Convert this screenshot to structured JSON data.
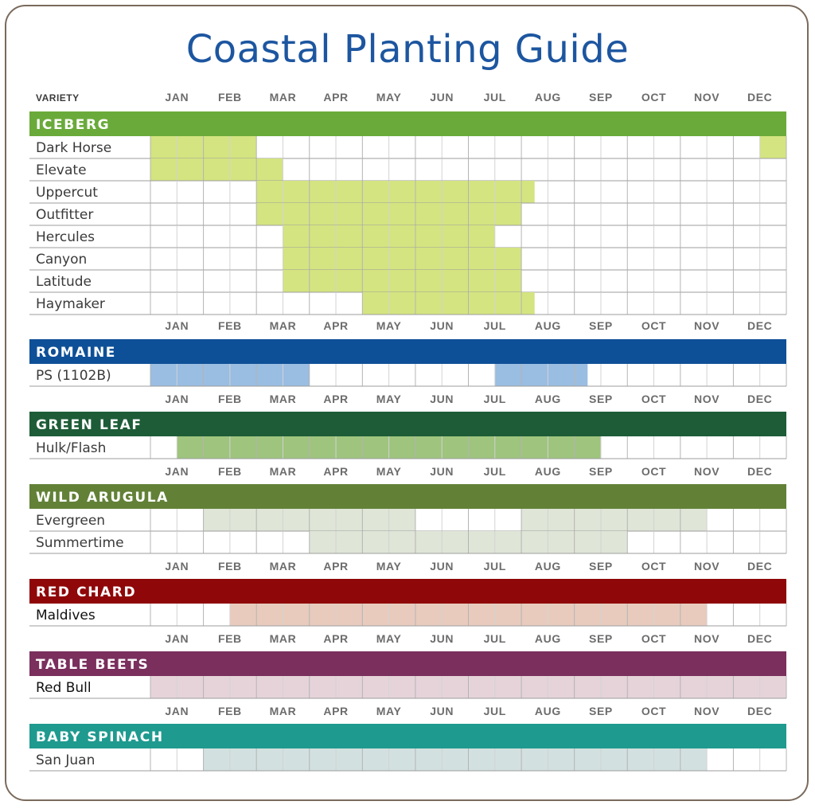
{
  "title": "Coastal Planting Guide",
  "variety_header": "VARIETY",
  "chart_data": {
    "type": "table",
    "months": [
      "JAN",
      "FEB",
      "MAR",
      "APR",
      "MAY",
      "JUN",
      "JUL",
      "AUG",
      "SEP",
      "OCT",
      "NOV",
      "DEC"
    ],
    "note": "each month is split into halves; start/end are half-month positions (0 = start of JAN, 24 = end of DEC)",
    "sections": [
      {
        "name": "ICEBERG",
        "color": "#6aaa3a",
        "fill": "#d4e480",
        "rows": [
          {
            "variety": "Dark Horse",
            "ranges": [
              [
                0,
                4
              ],
              [
                23,
                24
              ]
            ]
          },
          {
            "variety": "Elevate",
            "ranges": [
              [
                0,
                5
              ]
            ]
          },
          {
            "variety": "Uppercut",
            "ranges": [
              [
                4,
                14.5
              ]
            ]
          },
          {
            "variety": "Outfitter",
            "ranges": [
              [
                4,
                14
              ]
            ]
          },
          {
            "variety": "Hercules",
            "ranges": [
              [
                5,
                13
              ]
            ]
          },
          {
            "variety": "Canyon",
            "ranges": [
              [
                5,
                14
              ]
            ]
          },
          {
            "variety": "Latitude",
            "ranges": [
              [
                5,
                14
              ]
            ]
          },
          {
            "variety": "Haymaker",
            "ranges": [
              [
                8,
                14.5
              ]
            ]
          }
        ]
      },
      {
        "name": "ROMAINE",
        "color": "#0e5097",
        "fill": "#9abde2",
        "rows": [
          {
            "variety": "PS (1102B)",
            "ranges": [
              [
                0,
                6
              ],
              [
                13,
                16.5
              ]
            ]
          }
        ]
      },
      {
        "name": "GREEN LEAF",
        "color": "#1d5c37",
        "fill": "#9ec47e",
        "rows": [
          {
            "variety": "Hulk/Flash",
            "ranges": [
              [
                1,
                17
              ]
            ]
          }
        ]
      },
      {
        "name": "WILD ARUGULA",
        "color": "#628137",
        "fill": "#dfe5d7",
        "rows": [
          {
            "variety": "Evergreen",
            "ranges": [
              [
                2,
                10
              ],
              [
                14,
                21
              ]
            ]
          },
          {
            "variety": "Summertime",
            "ranges": [
              [
                6,
                18
              ]
            ]
          }
        ]
      },
      {
        "name": "RED CHARD",
        "color": "#8f0709",
        "fill": "#e8cbbd",
        "rows": [
          {
            "variety": "Maldives",
            "ranges": [
              [
                3,
                21
              ]
            ]
          }
        ]
      },
      {
        "name": "TABLE BEETS",
        "color": "#7a2f5d",
        "fill": "#e6d3da",
        "rows": [
          {
            "variety": "Red Bull",
            "ranges": [
              [
                0,
                24
              ]
            ]
          }
        ]
      },
      {
        "name": "BABY SPINACH",
        "color": "#1f9a8f",
        "fill": "#d2e0df",
        "rows": [
          {
            "variety": "San Juan",
            "ranges": [
              [
                2,
                21
              ]
            ]
          }
        ]
      }
    ]
  }
}
